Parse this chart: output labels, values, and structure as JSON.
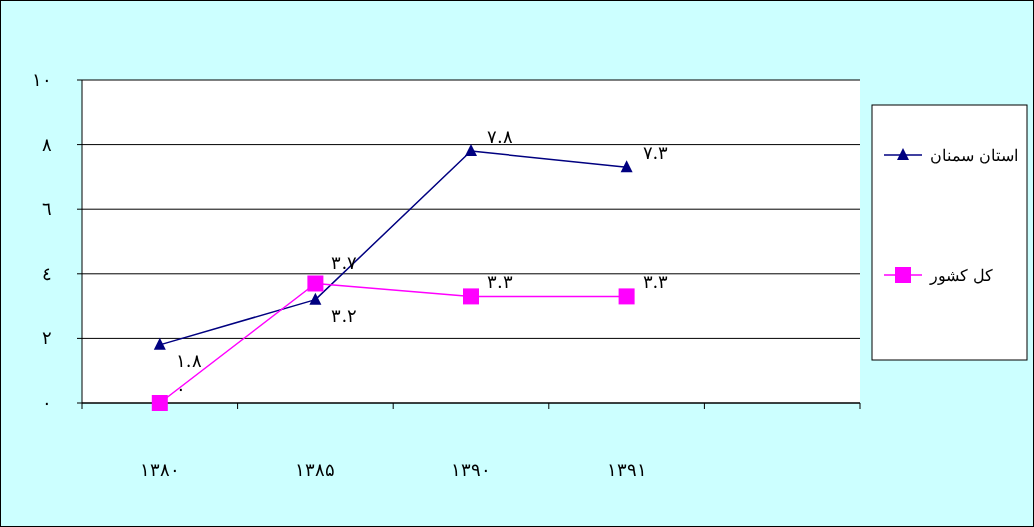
{
  "chart_data": {
    "type": "line",
    "categories": [
      "۱۳۸۰",
      "۱۳۸۵",
      "۱۳۹۰",
      "۱۳۹۱",
      null
    ],
    "series": [
      {
        "name": "استان سمنان",
        "color": "#000080",
        "marker": "triangle",
        "values": [
          1.8,
          3.2,
          7.8,
          7.3,
          null
        ],
        "value_labels": [
          "۱.۸",
          "۳.۲",
          "۷.۸",
          "۷.۳",
          null
        ]
      },
      {
        "name": "کل کشور",
        "color": "#ff00ff",
        "marker": "square",
        "values": [
          0,
          3.7,
          3.3,
          3.3,
          null
        ],
        "value_labels": [
          "۰",
          "۳.۷",
          "۳.۳",
          "۳.۳",
          null
        ]
      }
    ],
    "ylim": [
      0,
      10
    ],
    "yticks": [
      {
        "value": 0,
        "label": "۰"
      },
      {
        "value": 2,
        "label": "۲"
      },
      {
        "value": 4,
        "label": "٤"
      },
      {
        "value": 6,
        "label": "٦"
      },
      {
        "value": 8,
        "label": "۸"
      },
      {
        "value": 10,
        "label": "۱۰"
      }
    ],
    "grid": "y",
    "legend": "right"
  }
}
